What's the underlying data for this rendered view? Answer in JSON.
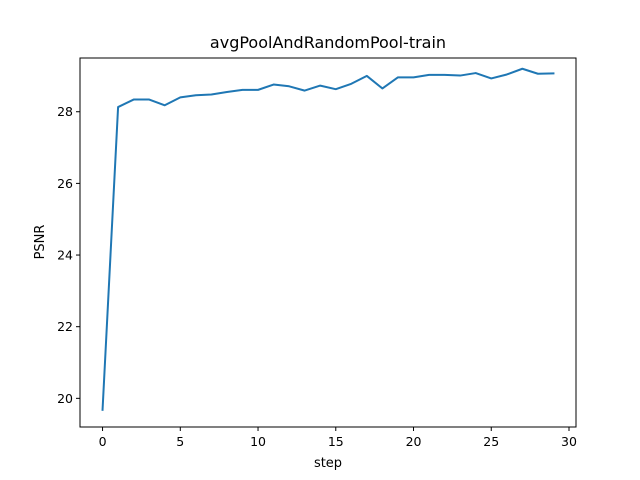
{
  "chart_data": {
    "type": "line",
    "title": "avgPoolAndRandomPool-train",
    "xlabel": "step",
    "ylabel": "PSNR",
    "xlim": [
      -1.45,
      30.45
    ],
    "ylim": [
      19.2,
      29.5
    ],
    "xticks": [
      0,
      5,
      10,
      15,
      20,
      25,
      30
    ],
    "yticks": [
      20,
      22,
      24,
      26,
      28
    ],
    "grid": false,
    "legend": "none",
    "series": [
      {
        "color": "#1f77b4",
        "x": [
          0,
          1,
          2,
          3,
          4,
          5,
          6,
          7,
          8,
          9,
          10,
          11,
          12,
          13,
          14,
          15,
          16,
          17,
          18,
          19,
          20,
          21,
          22,
          23,
          24,
          25,
          26,
          27,
          28,
          29
        ],
        "y": [
          19.68,
          28.13,
          28.34,
          28.34,
          28.18,
          28.4,
          28.46,
          28.48,
          28.55,
          28.61,
          28.61,
          28.76,
          28.71,
          28.59,
          28.73,
          28.63,
          28.78,
          29.0,
          28.65,
          28.96,
          28.96,
          29.03,
          29.03,
          29.01,
          29.08,
          28.93,
          29.04,
          29.2,
          29.06,
          29.07
        ]
      }
    ]
  }
}
